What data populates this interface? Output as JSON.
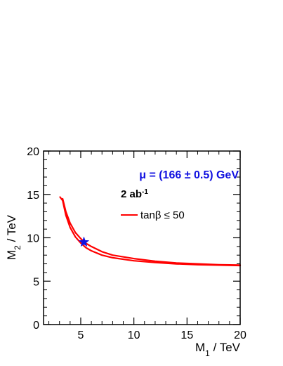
{
  "chart_data": {
    "type": "line",
    "xlabel": {
      "main": "M",
      "sub": "1",
      "unit": " / TeV"
    },
    "ylabel": {
      "main": "M",
      "sub": "2",
      "unit": " / TeV"
    },
    "xlim": [
      1.5,
      20
    ],
    "ylim": [
      0,
      20
    ],
    "x_ticks": [
      5,
      10,
      15,
      20
    ],
    "y_ticks": [
      0,
      5,
      10,
      15,
      20
    ],
    "annotations": {
      "mu": "μ = (166 ± 0.5) GeV",
      "lumi_main": "2 ab",
      "lumi_sup": "-1"
    },
    "legend": {
      "label": "tanβ ≤ 50",
      "color": "#ff0000",
      "position": "top-right"
    },
    "series": [
      {
        "color": "#ff0000",
        "x": [
          3.05,
          3.3,
          3.6,
          4.0,
          4.5,
          5.0,
          5.5,
          6.0,
          7.0,
          8.0,
          10.0,
          12.0,
          14.0,
          16.0,
          18.0,
          20.0
        ],
        "y": [
          14.7,
          14.3,
          12.6,
          11.2,
          10.1,
          9.4,
          8.85,
          8.5,
          8.0,
          7.7,
          7.35,
          7.15,
          7.0,
          6.9,
          6.85,
          6.8
        ]
      },
      {
        "color": "#ff0000",
        "x": [
          3.3,
          3.6,
          4.0,
          4.5,
          5.0,
          5.5,
          6.0,
          7.0,
          8.0,
          10.0,
          12.0,
          14.0,
          16.0,
          18.0,
          20.0
        ],
        "y": [
          14.5,
          13.0,
          11.7,
          10.6,
          9.9,
          9.35,
          9.0,
          8.4,
          8.0,
          7.6,
          7.3,
          7.1,
          7.0,
          6.9,
          6.85
        ]
      }
    ],
    "marker": {
      "shape": "star",
      "x": 5.3,
      "y": 9.5,
      "color": "#1010e0"
    }
  }
}
